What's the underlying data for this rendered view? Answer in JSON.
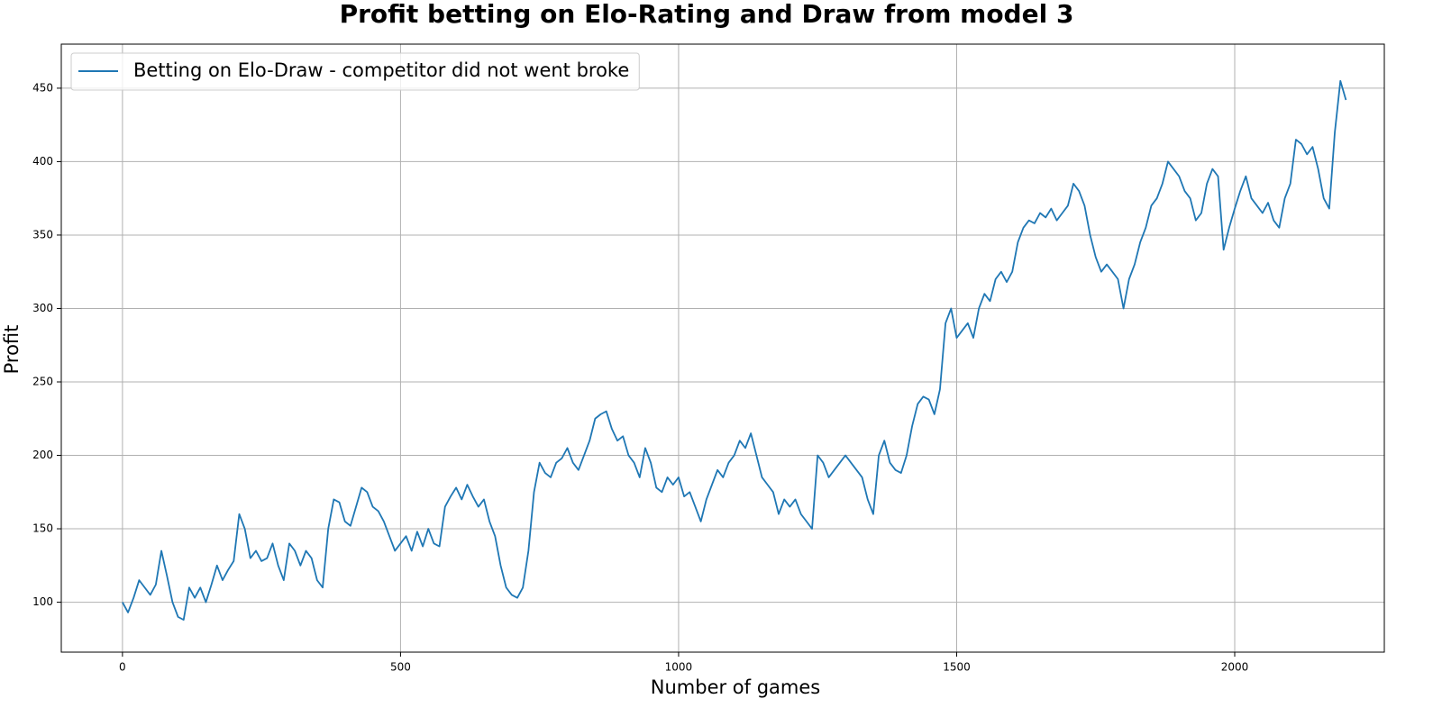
{
  "chart_data": {
    "type": "line",
    "title": "Profit betting on Elo-Rating and Draw from model 3",
    "x_label": "Number of games",
    "y_label": "Profit",
    "xlim": [
      -110,
      2269
    ],
    "ylim": [
      66,
      480
    ],
    "xticks": [
      0,
      500,
      1000,
      1500,
      2000
    ],
    "yticks": [
      100,
      150,
      200,
      250,
      300,
      350,
      400,
      450
    ],
    "grid": true,
    "legend": "upper left",
    "x": [
      0,
      10,
      20,
      30,
      40,
      50,
      60,
      70,
      80,
      90,
      100,
      110,
      120,
      130,
      140,
      150,
      160,
      170,
      180,
      190,
      200,
      210,
      220,
      230,
      240,
      250,
      260,
      270,
      280,
      290,
      300,
      310,
      320,
      330,
      340,
      350,
      360,
      370,
      380,
      390,
      400,
      410,
      420,
      430,
      440,
      450,
      460,
      470,
      480,
      490,
      500,
      510,
      520,
      530,
      540,
      550,
      560,
      570,
      580,
      590,
      600,
      610,
      620,
      630,
      640,
      650,
      660,
      670,
      680,
      690,
      700,
      710,
      720,
      730,
      740,
      750,
      760,
      770,
      780,
      790,
      800,
      810,
      820,
      830,
      840,
      850,
      860,
      870,
      880,
      890,
      900,
      910,
      920,
      930,
      940,
      950,
      960,
      970,
      980,
      990,
      1000,
      1010,
      1020,
      1030,
      1040,
      1050,
      1060,
      1070,
      1080,
      1090,
      1100,
      1110,
      1120,
      1130,
      1140,
      1150,
      1160,
      1170,
      1180,
      1190,
      1200,
      1210,
      1220,
      1230,
      1240,
      1250,
      1260,
      1270,
      1280,
      1290,
      1300,
      1310,
      1320,
      1330,
      1340,
      1350,
      1360,
      1370,
      1380,
      1390,
      1400,
      1410,
      1420,
      1430,
      1440,
      1450,
      1460,
      1470,
      1480,
      1490,
      1500,
      1510,
      1520,
      1530,
      1540,
      1550,
      1560,
      1570,
      1580,
      1590,
      1600,
      1610,
      1620,
      1630,
      1640,
      1650,
      1660,
      1670,
      1680,
      1690,
      1700,
      1710,
      1720,
      1730,
      1740,
      1750,
      1760,
      1770,
      1780,
      1790,
      1800,
      1810,
      1820,
      1830,
      1840,
      1850,
      1860,
      1870,
      1880,
      1890,
      1900,
      1910,
      1920,
      1930,
      1940,
      1950,
      1960,
      1970,
      1980,
      1990,
      2000,
      2010,
      2020,
      2030,
      2040,
      2050,
      2060,
      2070,
      2080,
      2090,
      2100,
      2110,
      2120,
      2130,
      2140,
      2150,
      2160,
      2170,
      2180,
      2190,
      2200
    ],
    "series": [
      {
        "name": "Betting on Elo-Draw - competitor did not went broke",
        "color": "#1f77b4",
        "values": [
          100,
          93,
          103,
          115,
          110,
          105,
          112,
          135,
          118,
          100,
          90,
          88,
          110,
          103,
          110,
          100,
          112,
          125,
          115,
          122,
          128,
          160,
          150,
          130,
          135,
          128,
          130,
          140,
          125,
          115,
          140,
          135,
          125,
          135,
          130,
          115,
          110,
          150,
          170,
          168,
          155,
          152,
          165,
          178,
          175,
          165,
          162,
          155,
          145,
          135,
          140,
          145,
          135,
          148,
          138,
          150,
          140,
          138,
          165,
          172,
          178,
          170,
          180,
          172,
          165,
          170,
          155,
          145,
          125,
          110,
          105,
          103,
          110,
          135,
          175,
          195,
          188,
          185,
          195,
          198,
          205,
          195,
          190,
          200,
          210,
          225,
          228,
          230,
          218,
          210,
          213,
          200,
          195,
          185,
          205,
          195,
          178,
          175,
          185,
          180,
          185,
          172,
          175,
          165,
          155,
          170,
          180,
          190,
          185,
          195,
          200,
          210,
          205,
          215,
          200,
          185,
          180,
          175,
          160,
          170,
          165,
          170,
          160,
          155,
          150,
          200,
          195,
          185,
          190,
          195,
          200,
          195,
          190,
          185,
          170,
          160,
          200,
          210,
          195,
          190,
          188,
          200,
          220,
          235,
          240,
          238,
          228,
          245,
          290,
          300,
          280,
          285,
          290,
          280,
          300,
          310,
          305,
          320,
          325,
          318,
          325,
          345,
          355,
          360,
          358,
          365,
          362,
          368,
          360,
          365,
          370,
          385,
          380,
          370,
          350,
          335,
          325,
          330,
          325,
          320,
          300,
          320,
          330,
          345,
          355,
          370,
          375,
          385,
          400,
          395,
          390,
          380,
          375,
          360,
          365,
          385,
          395,
          390,
          340,
          355,
          368,
          380,
          390,
          375,
          370,
          365,
          372,
          360,
          355,
          375,
          385,
          415,
          412,
          405,
          410,
          395,
          375,
          368,
          420,
          455,
          442
        ]
      }
    ]
  }
}
